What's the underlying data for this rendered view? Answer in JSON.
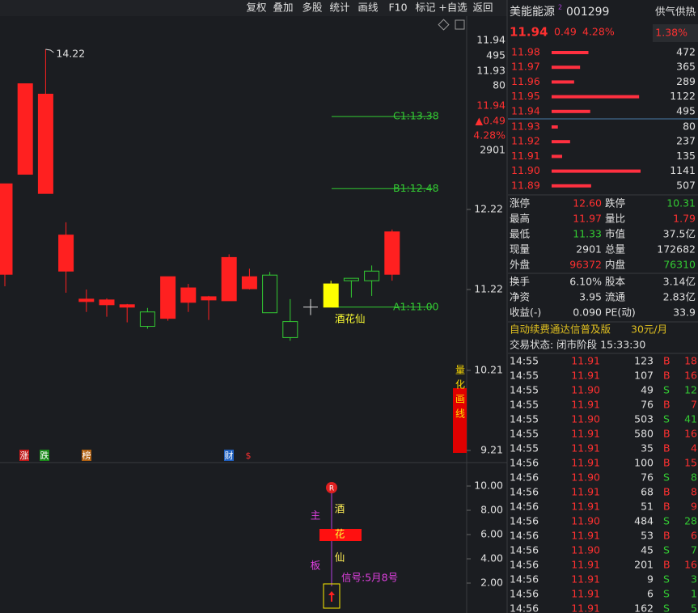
{
  "toolbar": [
    "复权",
    "叠加",
    "多股",
    "统计",
    "画线",
    "F10",
    "标记",
    "+自选",
    "返回"
  ],
  "chart": {
    "candles": [
      {
        "open": 11.41,
        "high": 12.54,
        "low": 11.26,
        "close": 12.54
      },
      {
        "open": 12.66,
        "high": 13.79,
        "low": 12.66,
        "close": 13.79
      },
      {
        "open": 12.42,
        "high": 14.22,
        "low": 12.42,
        "close": 13.66
      },
      {
        "open": 11.45,
        "high": 12.06,
        "low": 11.18,
        "close": 11.9
      },
      {
        "open": 11.07,
        "high": 11.22,
        "low": 10.94,
        "close": 11.1
      },
      {
        "open": 11.03,
        "high": 11.11,
        "low": 10.88,
        "close": 11.09
      },
      {
        "open": 11.0,
        "high": 11.04,
        "low": 10.81,
        "close": 11.03
      },
      {
        "open": 10.94,
        "high": 10.99,
        "low": 10.73,
        "close": 10.76
      },
      {
        "open": 10.86,
        "high": 11.38,
        "low": 10.83,
        "close": 11.38
      },
      {
        "open": 11.06,
        "high": 11.29,
        "low": 10.94,
        "close": 11.24
      },
      {
        "open": 11.09,
        "high": 11.14,
        "low": 10.84,
        "close": 11.13
      },
      {
        "open": 11.08,
        "high": 11.66,
        "low": 11.08,
        "close": 11.62
      },
      {
        "open": 11.23,
        "high": 11.48,
        "low": 11.22,
        "close": 11.38
      },
      {
        "open": 11.4,
        "high": 11.44,
        "low": 10.93,
        "close": 10.93
      },
      {
        "open": 10.82,
        "high": 11.1,
        "low": 10.58,
        "close": 10.62
      },
      {
        "open": 11.0,
        "high": 11.1,
        "low": 10.9,
        "close": 11.0
      },
      {
        "open": 11.0,
        "high": 11.33,
        "low": 11.0,
        "close": 11.29
      },
      {
        "open": 11.36,
        "high": 11.36,
        "low": 11.12,
        "close": 11.33
      },
      {
        "open": 11.45,
        "high": 11.52,
        "low": 11.14,
        "close": 11.33
      },
      {
        "open": 11.41,
        "high": 11.97,
        "low": 11.33,
        "close": 11.94
      }
    ],
    "up_color": "#ff2020",
    "down_color": "#33cc33",
    "highlighted": 16,
    "highlight_color": "#ffff00",
    "levels": [
      {
        "label": "C1:13.38",
        "value": 13.38
      },
      {
        "label": "B1:12.48",
        "value": 12.48
      },
      {
        "label": "A1:11.00",
        "value": 11.0
      }
    ],
    "stock_label": "酒花仙",
    "side_tag": "量化画线",
    "markers": [
      "涨",
      "跌",
      "榜",
      "财",
      "$"
    ],
    "price_ticks": [
      12.22,
      11.22,
      10.21,
      9.21
    ],
    "axis_quotes": [
      {
        "text": "11.94",
        "color": "#e0e0e0"
      },
      {
        "text": "495",
        "color": "#e0e0e0"
      },
      {
        "text": "11.93",
        "color": "#e0e0e0"
      },
      {
        "text": "80",
        "color": "#e0e0e0"
      },
      {
        "text": "11.94",
        "color": "#ff3030"
      },
      {
        "text": "▲0.49",
        "color": "#ff3030"
      },
      {
        "text": "4.28%",
        "color": "#ff3030"
      },
      {
        "text": "2901",
        "color": "#e0e0e0"
      }
    ]
  },
  "indicator": {
    "ticks": [
      {
        "value": 10,
        "label": "10.00"
      },
      {
        "value": 8,
        "label": "8.00"
      },
      {
        "value": 6,
        "label": "6.00"
      },
      {
        "value": 4,
        "label": "4.00"
      },
      {
        "value": 2,
        "label": "2.00"
      }
    ],
    "badge": "R",
    "left_top": "主",
    "left_bottom": "板",
    "chars": [
      "酒",
      "花",
      "仙"
    ],
    "signal": "信号:5月8号"
  },
  "quote": {
    "name": "美能能源",
    "superscript": "2",
    "code": "001299",
    "sector": "供气供热",
    "sector_change": "1.38%",
    "price": "11.94",
    "change": "0.49",
    "change_pct": "4.28%"
  },
  "order_book": {
    "asks": [
      {
        "price": "11.98",
        "volume": 472
      },
      {
        "price": "11.97",
        "volume": 365
      },
      {
        "price": "11.96",
        "volume": 289
      },
      {
        "price": "11.95",
        "volume": 1122
      },
      {
        "price": "11.94",
        "volume": 495
      }
    ],
    "bids": [
      {
        "price": "11.93",
        "volume": 80
      },
      {
        "price": "11.92",
        "volume": 237
      },
      {
        "price": "11.91",
        "volume": 135
      },
      {
        "price": "11.90",
        "volume": 1141
      },
      {
        "price": "11.89",
        "volume": 507
      }
    ]
  },
  "stats": [
    [
      {
        "label": "涨停",
        "value": "12.60",
        "tone": "up"
      },
      {
        "label": "跌停",
        "value": "10.31",
        "tone": "down"
      }
    ],
    [
      {
        "label": "最高",
        "value": "11.97",
        "tone": "up"
      },
      {
        "label": "量比",
        "value": "1.79",
        "tone": "up"
      }
    ],
    [
      {
        "label": "最低",
        "value": "11.33",
        "tone": "down"
      },
      {
        "label": "市值",
        "value": "37.5亿",
        "tone": "flat"
      }
    ],
    [
      {
        "label": "现量",
        "value": "2901",
        "tone": "flat"
      },
      {
        "label": "总量",
        "value": "172682",
        "tone": "flat"
      }
    ],
    [
      {
        "label": "外盘",
        "value": "96372",
        "tone": "up"
      },
      {
        "label": "内盘",
        "value": "76310",
        "tone": "down"
      }
    ],
    [
      {
        "label": "换手",
        "value": "6.10%",
        "tone": "flat"
      },
      {
        "label": "股本",
        "value": "3.14亿",
        "tone": "flat"
      }
    ],
    [
      {
        "label": "净资",
        "value": "3.95",
        "tone": "flat"
      },
      {
        "label": "流通",
        "value": "2.83亿",
        "tone": "flat"
      }
    ],
    [
      {
        "label": "收益(-)",
        "value": "0.090",
        "tone": "flat"
      },
      {
        "label": "PE(动)",
        "value": "33.9",
        "tone": "flat"
      }
    ]
  ],
  "ad": [
    "自动续费通达信普及版",
    "30元/月"
  ],
  "status": "交易状态: 闭市阶段 15:33:30",
  "trades": [
    [
      "14:55",
      "11.91",
      "123",
      "B",
      "18"
    ],
    [
      "14:55",
      "11.91",
      "107",
      "B",
      "16"
    ],
    [
      "14:55",
      "11.90",
      "49",
      "S",
      "12"
    ],
    [
      "14:55",
      "11.91",
      "76",
      "B",
      "7"
    ],
    [
      "14:55",
      "11.90",
      "503",
      "S",
      "41"
    ],
    [
      "14:55",
      "11.91",
      "580",
      "B",
      "16"
    ],
    [
      "14:55",
      "11.91",
      "35",
      "B",
      "4"
    ],
    [
      "14:56",
      "11.91",
      "100",
      "B",
      "15"
    ],
    [
      "14:56",
      "11.90",
      "76",
      "S",
      "8"
    ],
    [
      "14:56",
      "11.91",
      "68",
      "B",
      "8"
    ],
    [
      "14:56",
      "11.91",
      "51",
      "B",
      "9"
    ],
    [
      "14:56",
      "11.90",
      "484",
      "S",
      "28"
    ],
    [
      "14:56",
      "11.91",
      "53",
      "B",
      "6"
    ],
    [
      "14:56",
      "11.90",
      "45",
      "S",
      "7"
    ],
    [
      "14:56",
      "11.91",
      "201",
      "B",
      "16"
    ],
    [
      "14:56",
      "11.91",
      "9",
      "S",
      "3"
    ],
    [
      "14:56",
      "11.91",
      "6",
      "S",
      "1"
    ],
    [
      "14:56",
      "11.91",
      "162",
      "S",
      "5"
    ]
  ]
}
